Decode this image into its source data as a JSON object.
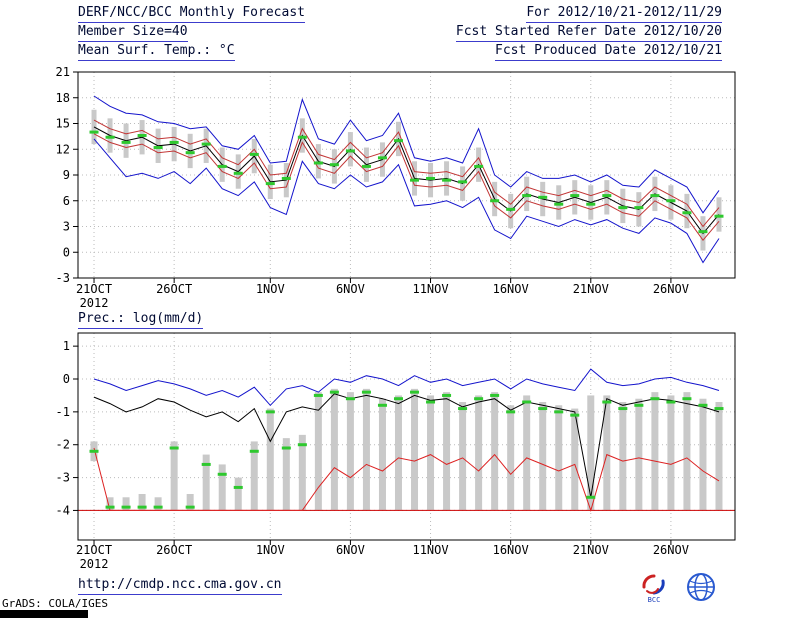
{
  "header": {
    "title": "DERF/NCC/BCC Monthly Forecast",
    "member_size": "Member Size=40",
    "variable_top": "Mean Surf. Temp.: °C",
    "forecast_range": "For 2012/10/21-2012/11/29",
    "refer_date": "Fcst Started Refer Date 2012/10/20",
    "produced_date": "Fcst Produced Date 2012/10/21"
  },
  "footer": {
    "url": "http://cmdp.ncc.cma.gov.cn",
    "grads_credit": "GrADS: COLA/IGES",
    "logo_bcc": "BCC"
  },
  "colors": {
    "header_text": "#000a33",
    "underline": "#3c3ccc",
    "range_bar": "#c9c9c9",
    "envelope_blue": "#1414cc",
    "mean_black": "#000000",
    "sigma_red": "#c23535",
    "min_red": "#dd2222",
    "floor_red": "#cc0000",
    "median_green": "#2ec82e"
  },
  "chart_data": [
    {
      "name": "temperature-forecast",
      "type": "line",
      "title": "Mean Surf. Temp.: °C",
      "n_days": 40,
      "ylim": [
        -3,
        21
      ],
      "frame_ylim": [
        -3,
        21
      ],
      "y_ticks": [
        21,
        18,
        15,
        12,
        9,
        6,
        3,
        0,
        -3
      ],
      "x_ticks": [
        {
          "day": 0,
          "label": "21OCT"
        },
        {
          "day": 5,
          "label": "26OCT"
        },
        {
          "day": 11,
          "label": "1NOV"
        },
        {
          "day": 16,
          "label": "6NOV"
        },
        {
          "day": 21,
          "label": "11NOV"
        },
        {
          "day": 26,
          "label": "16NOV"
        },
        {
          "day": 31,
          "label": "21NOV"
        },
        {
          "day": 36,
          "label": "26NOV"
        }
      ],
      "year_label": "2012",
      "grid": true,
      "bars": {
        "name": "ensemble-spread",
        "color": "#c9c9c9",
        "low": [
          12.6,
          11.6,
          11.0,
          11.4,
          10.4,
          10.6,
          9.8,
          10.4,
          8.2,
          7.4,
          9.2,
          6.2,
          6.4,
          11.6,
          8.6,
          8.0,
          10.0,
          8.2,
          8.8,
          11.2,
          6.6,
          6.4,
          6.6,
          6.0,
          8.2,
          4.2,
          2.8,
          4.8,
          4.2,
          3.8,
          4.4,
          3.8,
          4.4,
          3.4,
          3.0,
          4.8,
          3.8,
          2.8,
          0.2,
          2.4
        ],
        "high": [
          16.6,
          15.6,
          15.0,
          15.4,
          14.4,
          14.6,
          13.8,
          14.4,
          12.2,
          11.4,
          13.2,
          10.2,
          10.4,
          15.6,
          12.6,
          12.0,
          14.0,
          12.2,
          12.8,
          15.2,
          10.6,
          10.4,
          10.6,
          10.0,
          12.2,
          8.2,
          6.8,
          8.8,
          8.2,
          7.8,
          8.4,
          7.8,
          8.4,
          7.4,
          7.0,
          8.8,
          7.8,
          6.8,
          4.2,
          6.4
        ]
      },
      "series": [
        {
          "name": "ensemble-max",
          "style": "line",
          "color": "#1414cc",
          "values": [
            18.2,
            17.0,
            16.2,
            16.0,
            15.2,
            15.0,
            14.4,
            14.6,
            12.4,
            12.0,
            13.6,
            10.4,
            10.6,
            17.8,
            13.2,
            12.6,
            15.4,
            13.0,
            13.6,
            16.2,
            11.0,
            10.6,
            11.0,
            10.4,
            14.4,
            9.0,
            7.6,
            9.4,
            8.6,
            8.6,
            9.0,
            8.2,
            9.0,
            7.8,
            7.6,
            9.6,
            8.6,
            7.6,
            4.6,
            7.2
          ]
        },
        {
          "name": "ensemble-min",
          "style": "line",
          "color": "#1414cc",
          "values": [
            13.2,
            11.0,
            8.8,
            9.2,
            8.6,
            9.4,
            8.0,
            9.8,
            7.4,
            6.6,
            8.2,
            5.2,
            4.4,
            10.6,
            8.0,
            7.4,
            9.0,
            7.6,
            8.2,
            10.2,
            5.4,
            5.6,
            6.0,
            5.2,
            6.4,
            2.6,
            1.6,
            4.2,
            3.6,
            3.0,
            3.8,
            3.2,
            3.8,
            2.8,
            2.2,
            4.0,
            3.4,
            2.2,
            -1.2,
            1.6
          ]
        },
        {
          "name": "plus-sigma",
          "style": "line",
          "color": "#c23535",
          "values": [
            15.4,
            14.4,
            13.8,
            14.2,
            13.2,
            13.4,
            12.6,
            13.2,
            11.0,
            10.2,
            12.0,
            9.0,
            9.2,
            14.4,
            11.4,
            10.8,
            12.8,
            11.0,
            11.6,
            14.0,
            9.4,
            9.2,
            9.4,
            8.8,
            11.0,
            7.0,
            5.6,
            7.6,
            7.0,
            6.6,
            7.2,
            6.6,
            7.2,
            6.2,
            5.8,
            7.6,
            6.6,
            5.6,
            3.0,
            5.2
          ]
        },
        {
          "name": "minus-sigma",
          "style": "line",
          "color": "#c23535",
          "values": [
            13.8,
            12.8,
            12.2,
            12.6,
            11.6,
            11.8,
            11.0,
            11.6,
            9.4,
            8.6,
            10.4,
            7.4,
            7.6,
            12.8,
            9.8,
            9.2,
            11.2,
            9.4,
            10.0,
            12.4,
            7.8,
            7.6,
            7.8,
            7.2,
            9.4,
            5.4,
            4.0,
            6.0,
            5.4,
            5.0,
            5.6,
            5.0,
            5.6,
            4.6,
            4.2,
            6.0,
            5.0,
            4.0,
            1.4,
            3.6
          ]
        },
        {
          "name": "ensemble-mean",
          "style": "line",
          "color": "#000000",
          "values": [
            14.6,
            13.6,
            13.0,
            13.4,
            12.4,
            12.6,
            11.8,
            12.4,
            10.2,
            9.4,
            11.2,
            8.2,
            8.4,
            13.6,
            10.6,
            10.0,
            12.0,
            10.2,
            10.8,
            13.2,
            8.6,
            8.4,
            8.6,
            8.0,
            10.2,
            6.2,
            4.8,
            6.8,
            6.2,
            5.8,
            6.4,
            5.8,
            6.4,
            5.4,
            5.0,
            6.8,
            5.8,
            4.8,
            2.2,
            4.4
          ]
        },
        {
          "name": "ensemble-median",
          "style": "dash",
          "color": "#2ec82e",
          "values": [
            14.0,
            13.4,
            12.8,
            13.6,
            12.2,
            12.8,
            11.6,
            12.6,
            10.0,
            9.2,
            11.4,
            8.0,
            8.6,
            13.4,
            10.4,
            10.2,
            11.8,
            10.0,
            11.0,
            13.0,
            8.4,
            8.6,
            8.4,
            8.2,
            10.0,
            6.0,
            5.0,
            6.6,
            6.4,
            5.6,
            6.6,
            5.6,
            6.6,
            5.2,
            5.2,
            6.6,
            6.0,
            4.6,
            2.4,
            4.2
          ]
        }
      ]
    },
    {
      "name": "precipitation-forecast",
      "type": "line",
      "title": "Prec.: log(mm/d)",
      "n_days": 40,
      "ylim": [
        -4,
        1
      ],
      "frame_ylim": [
        -4.9,
        1.4
      ],
      "y_ticks": [
        1,
        0,
        -1,
        -2,
        -3,
        -4
      ],
      "x_ticks": [
        {
          "day": 0,
          "label": "21OCT"
        },
        {
          "day": 5,
          "label": "26OCT"
        },
        {
          "day": 11,
          "label": "1NOV"
        },
        {
          "day": 16,
          "label": "6NOV"
        },
        {
          "day": 21,
          "label": "11NOV"
        },
        {
          "day": 26,
          "label": "16NOV"
        },
        {
          "day": 31,
          "label": "21NOV"
        },
        {
          "day": 36,
          "label": "26NOV"
        }
      ],
      "year_label": "2012",
      "grid": true,
      "floor_line": {
        "value": -4,
        "color": "#cc0000"
      },
      "bars": {
        "name": "ensemble-spread",
        "color": "#c9c9c9",
        "low": [
          -2.5,
          -4.0,
          -4.0,
          -4.0,
          -4.0,
          -4.0,
          -4.0,
          -4.0,
          -4.0,
          -4.0,
          -4.0,
          -4.0,
          -4.0,
          -4.0,
          -4.0,
          -4.0,
          -4.0,
          -4.0,
          -4.0,
          -4.0,
          -4.0,
          -4.0,
          -4.0,
          -4.0,
          -4.0,
          -4.0,
          -4.0,
          -4.0,
          -4.0,
          -4.0,
          -4.0,
          -4.0,
          -4.0,
          -4.0,
          -4.0,
          -4.0,
          -4.0,
          -4.0,
          -4.0,
          -4.0
        ],
        "high": [
          -1.9,
          -3.6,
          -3.6,
          -3.5,
          -3.6,
          -1.9,
          -3.5,
          -2.3,
          -2.6,
          -3.0,
          -1.9,
          -0.9,
          -1.8,
          -1.7,
          -0.4,
          -0.3,
          -0.4,
          -0.3,
          -0.6,
          -0.5,
          -0.3,
          -0.5,
          -0.4,
          -0.7,
          -0.5,
          -0.4,
          -0.8,
          -0.5,
          -0.7,
          -0.8,
          -0.9,
          -0.5,
          -0.5,
          -0.7,
          -0.6,
          -0.4,
          -0.5,
          -0.4,
          -0.6,
          -0.7
        ]
      },
      "series": [
        {
          "name": "ensemble-max",
          "style": "line",
          "color": "#1414cc",
          "values": [
            0.0,
            -0.15,
            -0.35,
            -0.2,
            -0.05,
            -0.15,
            -0.3,
            -0.5,
            -0.35,
            -0.55,
            -0.25,
            -0.8,
            -0.3,
            -0.2,
            -0.4,
            0.0,
            -0.1,
            0.1,
            0.0,
            -0.2,
            0.1,
            -0.1,
            0.0,
            -0.2,
            -0.1,
            0.0,
            -0.3,
            0.0,
            -0.15,
            -0.25,
            -0.35,
            0.3,
            -0.1,
            -0.2,
            -0.15,
            0.0,
            0.05,
            -0.1,
            -0.2,
            -0.35
          ]
        },
        {
          "name": "ensemble-mean",
          "style": "line",
          "color": "#000000",
          "values": [
            -0.55,
            -0.75,
            -1.0,
            -0.85,
            -0.6,
            -0.7,
            -0.95,
            -1.15,
            -1.0,
            -1.3,
            -0.9,
            -1.9,
            -1.0,
            -0.85,
            -0.95,
            -0.45,
            -0.6,
            -0.5,
            -0.6,
            -0.75,
            -0.5,
            -0.65,
            -0.6,
            -0.85,
            -0.7,
            -0.6,
            -0.95,
            -0.7,
            -0.8,
            -0.9,
            -1.0,
            -3.6,
            -0.6,
            -0.8,
            -0.7,
            -0.6,
            -0.65,
            -0.75,
            -0.85,
            -1.0
          ]
        },
        {
          "name": "ensemble-min",
          "style": "line",
          "color": "#dd2222",
          "values": [
            -2.1,
            -4.0,
            -4.0,
            -4.0,
            -4.0,
            -4.0,
            -4.0,
            -4.0,
            -4.0,
            -4.0,
            -4.0,
            -4.0,
            -4.0,
            -4.0,
            -3.3,
            -2.7,
            -3.0,
            -2.6,
            -2.8,
            -2.4,
            -2.5,
            -2.3,
            -2.6,
            -2.4,
            -2.8,
            -2.3,
            -2.9,
            -2.4,
            -2.6,
            -2.8,
            -2.6,
            -4.0,
            -2.3,
            -2.5,
            -2.4,
            -2.5,
            -2.6,
            -2.4,
            -2.8,
            -3.1
          ]
        },
        {
          "name": "ensemble-median",
          "style": "dash",
          "color": "#2ec82e",
          "values": [
            -2.2,
            -3.9,
            -3.9,
            -3.9,
            -3.9,
            -2.1,
            -3.9,
            -2.6,
            -2.9,
            -3.3,
            -2.2,
            -1.0,
            -2.1,
            -2.0,
            -0.5,
            -0.4,
            -0.6,
            -0.4,
            -0.8,
            -0.6,
            -0.4,
            -0.7,
            -0.5,
            -0.9,
            -0.6,
            -0.5,
            -1.0,
            -0.7,
            -0.9,
            -1.0,
            -1.1,
            -3.6,
            -0.7,
            -0.9,
            -0.8,
            -0.6,
            -0.7,
            -0.6,
            -0.8,
            -0.9
          ]
        }
      ]
    }
  ]
}
